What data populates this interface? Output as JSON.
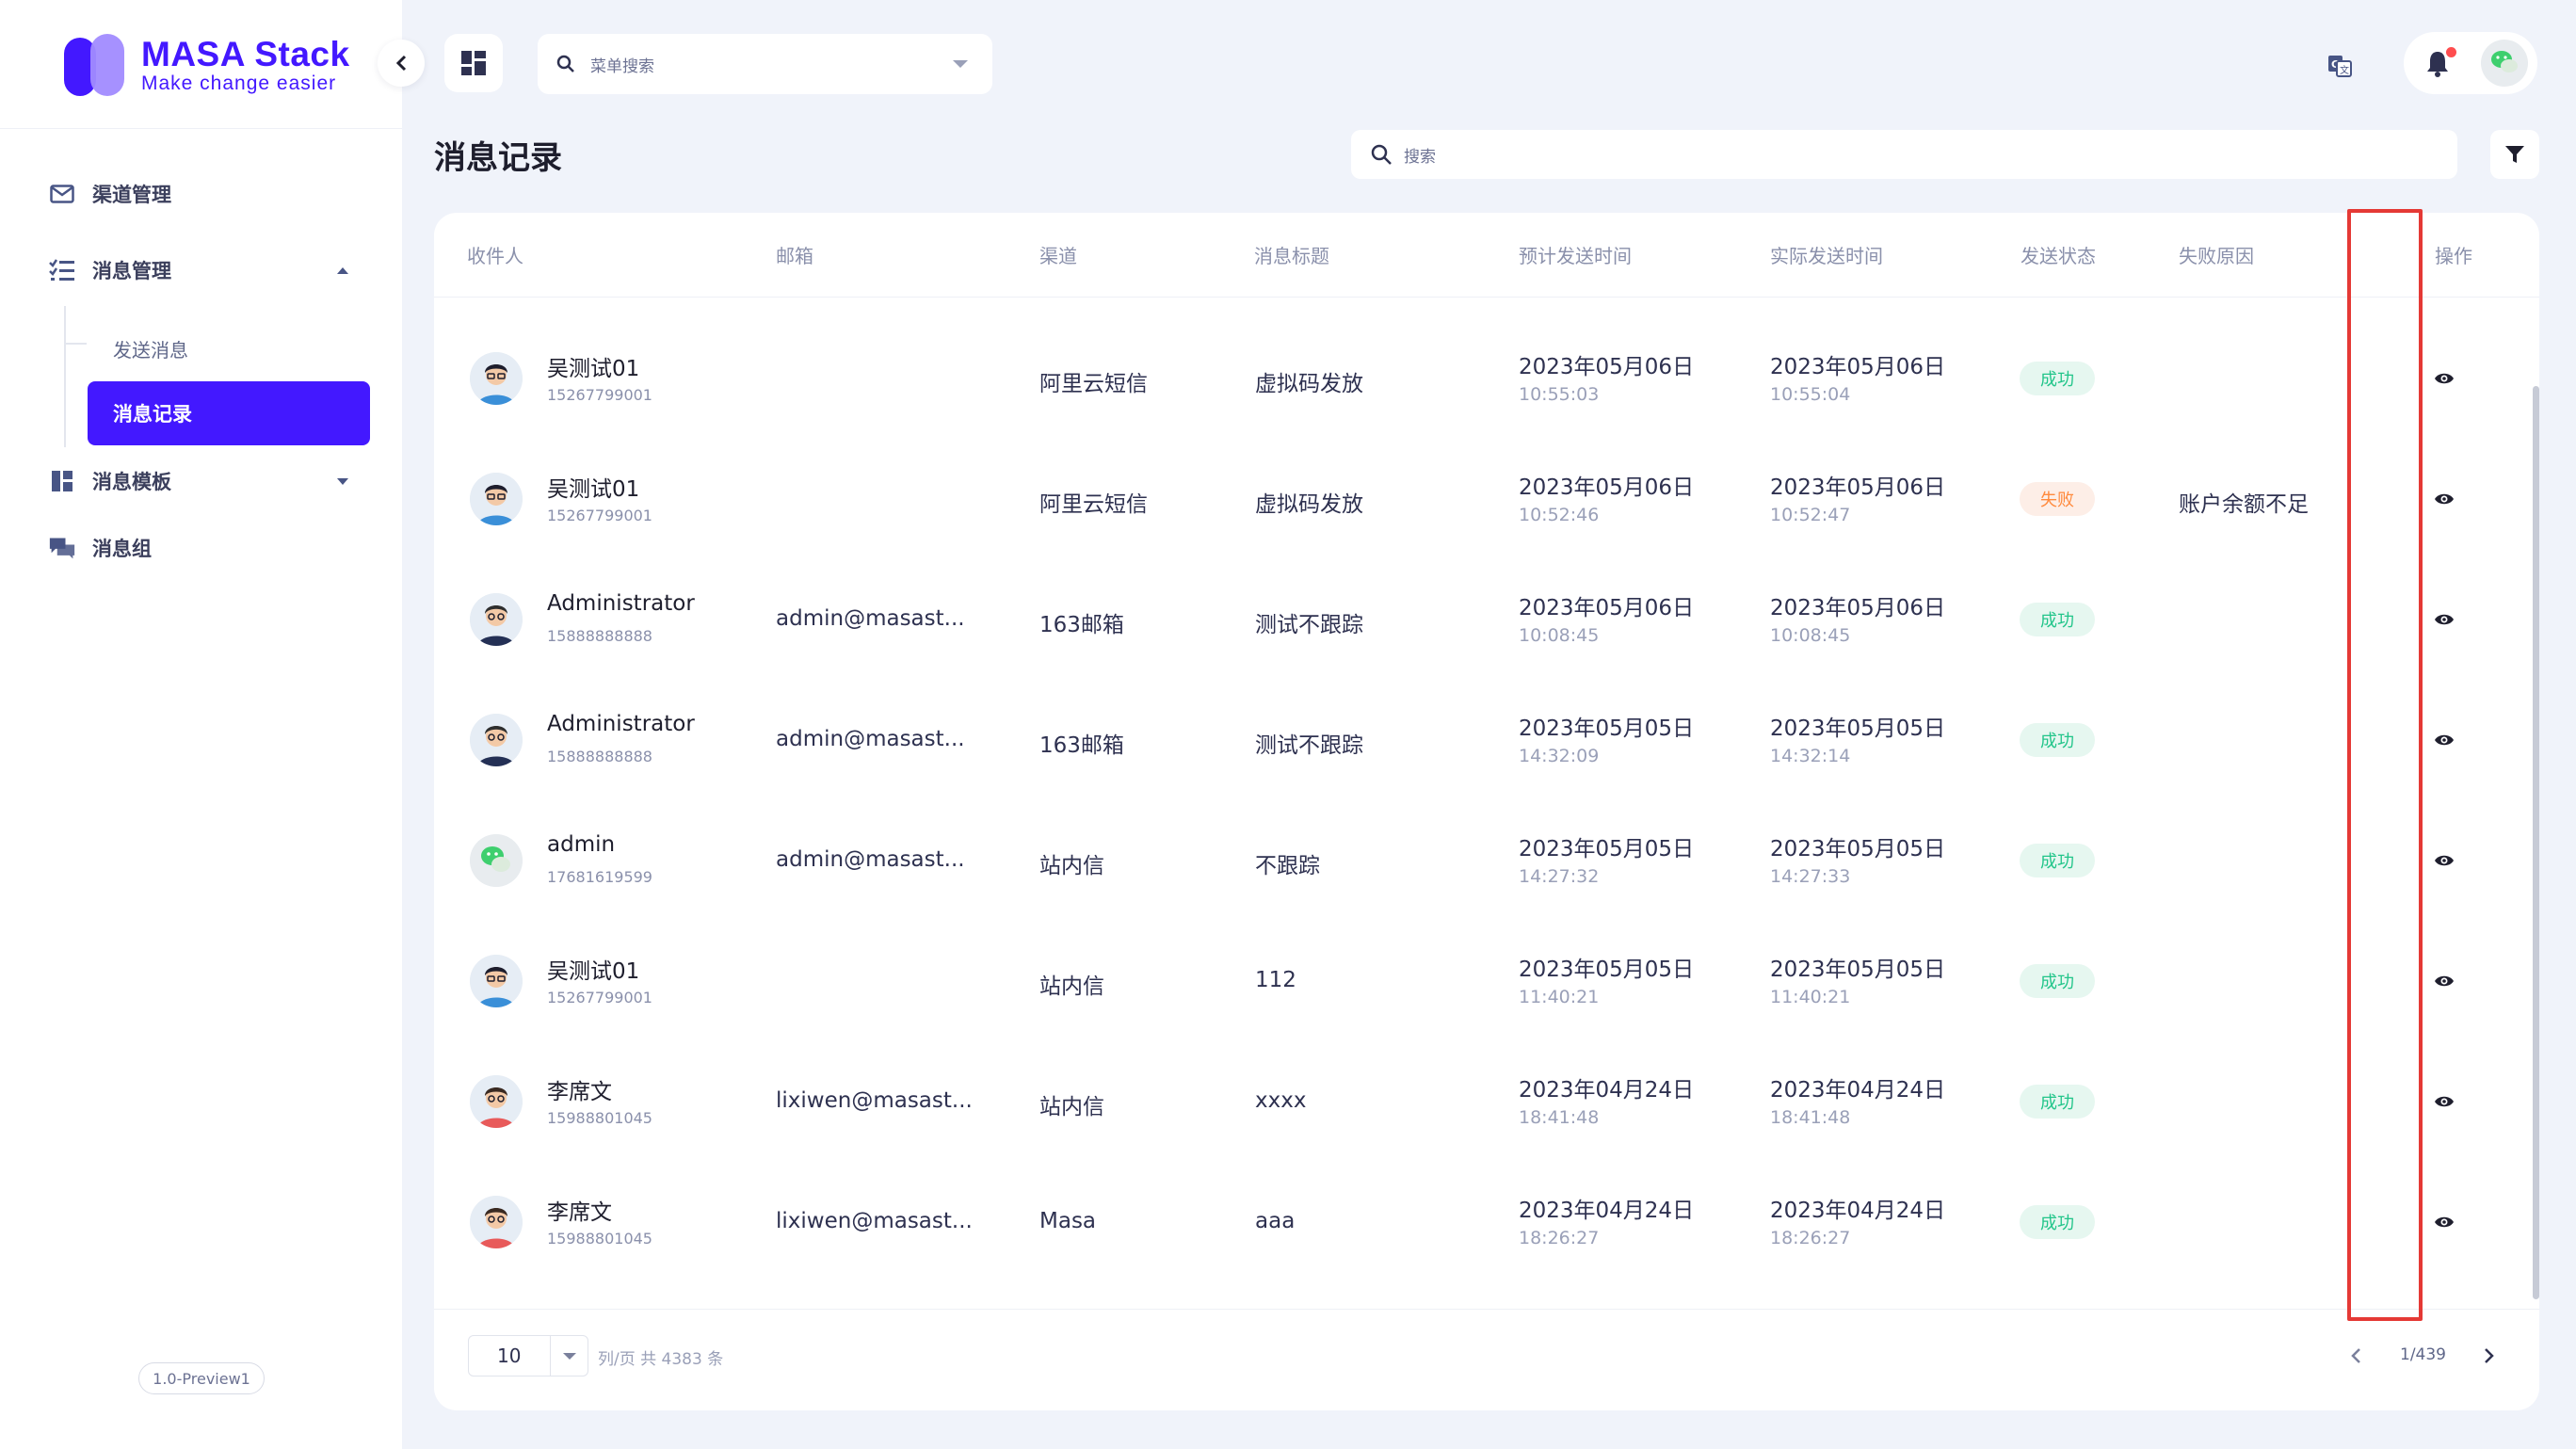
{
  "brand": {
    "name": "MASA Stack",
    "tagline": "Make change easier"
  },
  "sidebar": {
    "items": [
      {
        "label": "渠道管理",
        "icon": "mail-icon"
      },
      {
        "label": "消息管理",
        "icon": "list-check-icon"
      },
      {
        "label": "消息模板",
        "icon": "template-icon"
      },
      {
        "label": "消息组",
        "icon": "message-group-icon"
      }
    ],
    "sub_items": [
      {
        "label": "发送消息"
      },
      {
        "label": "消息记录",
        "active": true
      }
    ],
    "version": "1.0-Preview1"
  },
  "topbar": {
    "menu_search_placeholder": "菜单搜索"
  },
  "page": {
    "title": "消息记录",
    "search_placeholder": "搜索"
  },
  "table": {
    "headers": [
      "收件人",
      "邮箱",
      "渠道",
      "消息标题",
      "预计发送时间",
      "实际发送时间",
      "发送状态",
      "失败原因",
      "操作"
    ],
    "rows": [
      {
        "name": "吴测试01",
        "phone": "15267799001",
        "email": "",
        "channel": "阿里云短信",
        "title": "虚拟码发放",
        "plan_date": "2023年05月06日",
        "plan_time": "10:55:03",
        "send_date": "2023年05月06日",
        "send_time": "10:55:04",
        "status": "成功",
        "status_type": "ok",
        "reason": "",
        "avatar": "man-blue"
      },
      {
        "name": "吴测试01",
        "phone": "15267799001",
        "email": "",
        "channel": "阿里云短信",
        "title": "虚拟码发放",
        "plan_date": "2023年05月06日",
        "plan_time": "10:52:46",
        "send_date": "2023年05月06日",
        "send_time": "10:52:47",
        "status": "失败",
        "status_type": "fail",
        "reason": "账户余额不足",
        "avatar": "man-blue"
      },
      {
        "name": "Administrator",
        "phone": "15888888888",
        "email": "admin@masast...",
        "channel": "163邮箱",
        "title": "测试不跟踪",
        "plan_date": "2023年05月06日",
        "plan_time": "10:08:45",
        "send_date": "2023年05月06日",
        "send_time": "10:08:45",
        "status": "成功",
        "status_type": "ok",
        "reason": "",
        "avatar": "man-dark"
      },
      {
        "name": "Administrator",
        "phone": "15888888888",
        "email": "admin@masast...",
        "channel": "163邮箱",
        "title": "测试不跟踪",
        "plan_date": "2023年05月05日",
        "plan_time": "14:32:09",
        "send_date": "2023年05月05日",
        "send_time": "14:32:14",
        "status": "成功",
        "status_type": "ok",
        "reason": "",
        "avatar": "man-dark"
      },
      {
        "name": "admin",
        "phone": "17681619599",
        "email": "admin@masast...",
        "channel": "站内信",
        "title": "不跟踪",
        "plan_date": "2023年05月05日",
        "plan_time": "14:27:32",
        "send_date": "2023年05月05日",
        "send_time": "14:27:33",
        "status": "成功",
        "status_type": "ok",
        "reason": "",
        "avatar": "green"
      },
      {
        "name": "吴测试01",
        "phone": "15267799001",
        "email": "",
        "channel": "站内信",
        "title": "112",
        "plan_date": "2023年05月05日",
        "plan_time": "11:40:21",
        "send_date": "2023年05月05日",
        "send_time": "11:40:21",
        "status": "成功",
        "status_type": "ok",
        "reason": "",
        "avatar": "man-blue"
      },
      {
        "name": "李席文",
        "phone": "15988801045",
        "email": "lixiwen@masast...",
        "channel": "站内信",
        "title": "xxxx",
        "plan_date": "2023年04月24日",
        "plan_time": "18:41:48",
        "send_date": "2023年04月24日",
        "send_time": "18:41:48",
        "status": "成功",
        "status_type": "ok",
        "reason": "",
        "avatar": "man-red"
      },
      {
        "name": "李席文",
        "phone": "15988801045",
        "email": "lixiwen@masast...",
        "channel": "Masa",
        "title": "aaa",
        "plan_date": "2023年04月24日",
        "plan_time": "18:26:27",
        "send_date": "2023年04月24日",
        "send_time": "18:26:27",
        "status": "成功",
        "status_type": "ok",
        "reason": "",
        "avatar": "man-red"
      }
    ]
  },
  "pagination": {
    "page_size": "10",
    "info": "列/页  共 4383 条",
    "page_text": "1/439"
  },
  "colors": {
    "accent": "#4318ff",
    "success": "#22c58a",
    "fail": "#ff8a3d",
    "annotation": "#e53935"
  }
}
